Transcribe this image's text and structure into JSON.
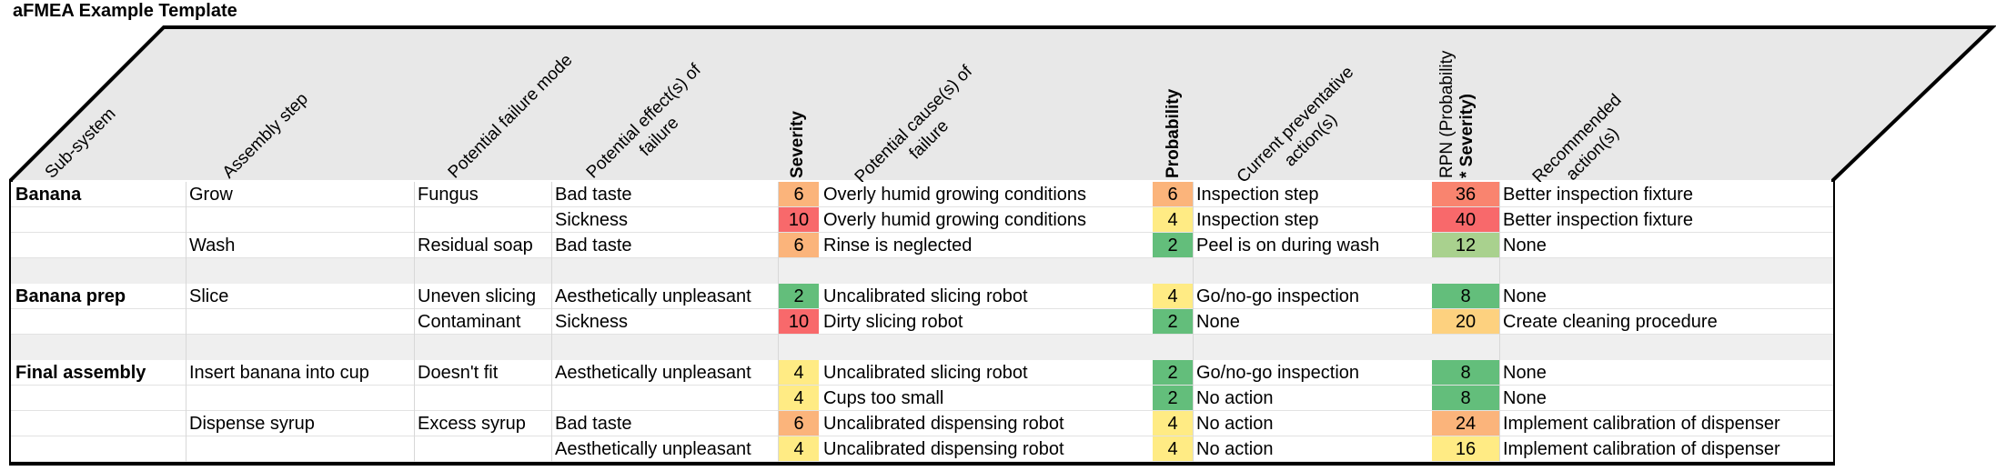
{
  "title": "aFMEA Example Template",
  "headers": {
    "sub_system": "Sub-system",
    "assembly_step": "Assembly step",
    "failure_mode": "Potential failure mode",
    "effect_line1": "Potential effect(s) of",
    "effect_line2": "failure",
    "severity": "Severity",
    "cause_line1": "Potential cause(s) of",
    "cause_line2": "failure",
    "probability": "Probability",
    "preventative_line1": "Current preventative",
    "preventative_line2": "action(s)",
    "rpn_line1": "RPN (Probability",
    "rpn_line2": "* Severity)",
    "recommended_line1": "Recommended",
    "recommended_line2": "action(s)"
  },
  "colors": {
    "green": "#63be7b",
    "lightgreen": "#a9d18e",
    "yellow": "#ffeb84",
    "lightorange": "#fdd17f",
    "orange": "#fbb47b",
    "red": "#f8696b",
    "midred": "#f9846f"
  },
  "rows": [
    {
      "sub": "Banana",
      "step": "Grow",
      "mode": "Fungus",
      "effect": "Bad taste",
      "sev": "6",
      "sev_color": "#fbb47b",
      "cause": "Overly humid growing conditions",
      "prob": "6",
      "prob_color": "#fbb47b",
      "prev": "Inspection step",
      "rpn": "36",
      "rpn_color": "#f9846f",
      "rec": "Better inspection fixture"
    },
    {
      "sub": "",
      "step": "",
      "mode": "",
      "effect": "Sickness",
      "sev": "10",
      "sev_color": "#f8696b",
      "cause": "Overly humid growing conditions",
      "prob": "4",
      "prob_color": "#ffeb84",
      "prev": "Inspection step",
      "rpn": "40",
      "rpn_color": "#f8696b",
      "rec": "Better inspection fixture"
    },
    {
      "sub": "",
      "step": "Wash",
      "mode": "Residual soap",
      "effect": "Bad taste",
      "sev": "6",
      "sev_color": "#fbb47b",
      "cause": "Rinse is neglected",
      "prob": "2",
      "prob_color": "#63be7b",
      "prev": "Peel is on during wash",
      "rpn": "12",
      "rpn_color": "#a9d18e",
      "rec": "None"
    },
    {
      "gap": true
    },
    {
      "sub": "Banana prep",
      "step": "Slice",
      "mode": "Uneven slicing",
      "effect": "Aesthetically unpleasant",
      "sev": "2",
      "sev_color": "#63be7b",
      "cause": "Uncalibrated slicing robot",
      "prob": "4",
      "prob_color": "#ffeb84",
      "prev": "Go/no-go inspection",
      "rpn": "8",
      "rpn_color": "#63be7b",
      "rec": "None"
    },
    {
      "sub": "",
      "step": "",
      "mode": "Contaminant",
      "effect": "Sickness",
      "sev": "10",
      "sev_color": "#f8696b",
      "cause": "Dirty slicing robot",
      "prob": "2",
      "prob_color": "#63be7b",
      "prev": "None",
      "rpn": "20",
      "rpn_color": "#fdd17f",
      "rec": "Create cleaning procedure"
    },
    {
      "gap": true
    },
    {
      "sub": "Final assembly",
      "step": "Insert banana into cup",
      "mode": "Doesn't fit",
      "effect": "Aesthetically unpleasant",
      "sev": "4",
      "sev_color": "#ffeb84",
      "cause": "Uncalibrated slicing robot",
      "prob": "2",
      "prob_color": "#63be7b",
      "prev": "Go/no-go inspection",
      "rpn": "8",
      "rpn_color": "#63be7b",
      "rec": "None"
    },
    {
      "sub": "",
      "step": "",
      "mode": "",
      "effect": "",
      "sev": "4",
      "sev_color": "#ffeb84",
      "cause": "Cups too small",
      "prob": "2",
      "prob_color": "#63be7b",
      "prev": "No action",
      "rpn": "8",
      "rpn_color": "#63be7b",
      "rec": "None"
    },
    {
      "sub": "",
      "step": "Dispense syrup",
      "mode": "Excess syrup",
      "effect": "Bad taste",
      "sev": "6",
      "sev_color": "#fbb47b",
      "cause": "Uncalibrated dispensing robot",
      "prob": "4",
      "prob_color": "#ffeb84",
      "prev": "No action",
      "rpn": "24",
      "rpn_color": "#fbb47b",
      "rec": "Implement calibration of dispenser"
    },
    {
      "sub": "",
      "step": "",
      "mode": "",
      "effect": "Aesthetically unpleasant",
      "sev": "4",
      "sev_color": "#ffeb84",
      "cause": "Uncalibrated dispensing robot",
      "prob": "4",
      "prob_color": "#ffeb84",
      "prev": "No action",
      "rpn": "16",
      "rpn_color": "#ffeb84",
      "rec": "Implement calibration of dispenser"
    }
  ]
}
